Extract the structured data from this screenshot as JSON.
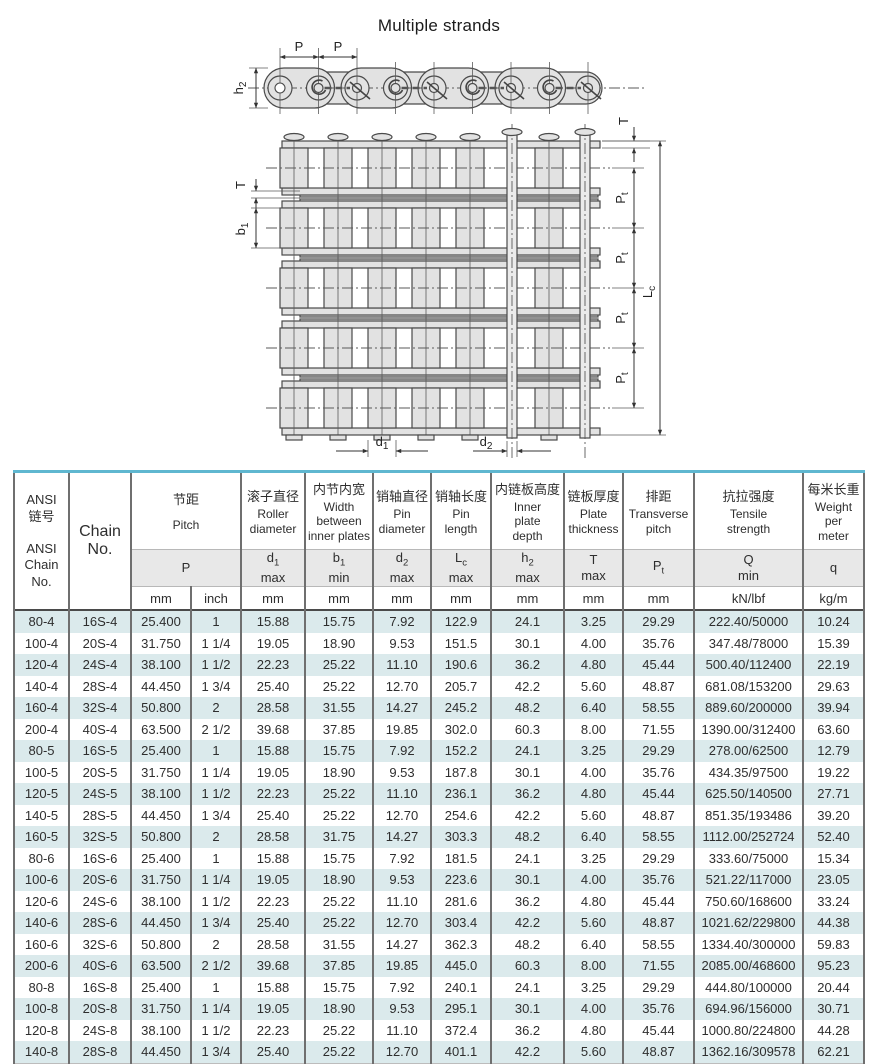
{
  "page": {
    "title": "Multiple strands"
  },
  "colors": {
    "accent_line": "#5fb7d0",
    "row_stripe": "#dbeaec",
    "header_band": "#e8e8e8"
  },
  "diagram": {
    "p_label": "P",
    "t_label": "T",
    "h_base": "h",
    "h_sub": "2",
    "b_base": "b",
    "b_sub": "1",
    "pt_base": "P",
    "pt_sub": "t",
    "lc_base": "L",
    "lc_sub": "c",
    "d1_base": "d",
    "d1_sub": "1",
    "d2_base": "d",
    "d2_sub": "2"
  },
  "table": {
    "ansi_col": "ANSI\n链号\n\nANSI\nChain\nNo.",
    "chain_col": "Chain No.",
    "groups": [
      {
        "zh": "节距",
        "en": "Pitch",
        "sym": {
          "b": "P"
        },
        "units": [
          "mm",
          "inch"
        ]
      },
      {
        "zh": "滚子直径",
        "en": "Roller\ndiameter",
        "sym": {
          "b": "d",
          "s": "1",
          "x": "max"
        },
        "units": [
          "mm"
        ]
      },
      {
        "zh": "内节内宽",
        "en": "Width\nbetween\ninner plates",
        "sym": {
          "b": "b",
          "s": "1",
          "x": "min"
        },
        "units": [
          "mm"
        ]
      },
      {
        "zh": "销轴直径",
        "en": "Pin\ndiameter",
        "sym": {
          "b": "d",
          "s": "2",
          "x": "max"
        },
        "units": [
          "mm"
        ]
      },
      {
        "zh": "销轴长度",
        "en": "Pin\nlength",
        "sym": {
          "b": "L",
          "s": "c",
          "x": "max"
        },
        "units": [
          "mm"
        ]
      },
      {
        "zh": "内链板高度",
        "en": "Inner\nplate\ndepth",
        "sym": {
          "b": "h",
          "s": "2",
          "x": "max"
        },
        "units": [
          "mm"
        ]
      },
      {
        "zh": "链板厚度",
        "en": "Plate\nthickness",
        "sym": {
          "b": "T",
          "x": "max"
        },
        "units": [
          "mm"
        ]
      },
      {
        "zh": "排距",
        "en": "Transverse\npitch",
        "sym": {
          "b": "P",
          "s": "t"
        },
        "units": [
          "mm"
        ]
      },
      {
        "zh": "抗拉强度",
        "en": "Tensile\nstrength",
        "sym": {
          "b": "Q",
          "x": "min"
        },
        "units": [
          "kN/lbf"
        ]
      },
      {
        "zh": "每米长重",
        "en": "Weight\nper\nmeter",
        "sym": {
          "b": "q"
        },
        "units": [
          "kg/m"
        ]
      }
    ],
    "rows": [
      [
        "80-4",
        "16S-4",
        "25.400",
        "1",
        "15.88",
        "15.75",
        "7.92",
        "122.9",
        "24.1",
        "3.25",
        "29.29",
        "222.40/50000",
        "10.24"
      ],
      [
        "100-4",
        "20S-4",
        "31.750",
        "1 1/4",
        "19.05",
        "18.90",
        "9.53",
        "151.5",
        "30.1",
        "4.00",
        "35.76",
        "347.48/78000",
        "15.39"
      ],
      [
        "120-4",
        "24S-4",
        "38.100",
        "1 1/2",
        "22.23",
        "25.22",
        "11.10",
        "190.6",
        "36.2",
        "4.80",
        "45.44",
        "500.40/112400",
        "22.19"
      ],
      [
        "140-4",
        "28S-4",
        "44.450",
        "1 3/4",
        "25.40",
        "25.22",
        "12.70",
        "205.7",
        "42.2",
        "5.60",
        "48.87",
        "681.08/153200",
        "29.63"
      ],
      [
        "160-4",
        "32S-4",
        "50.800",
        "2",
        "28.58",
        "31.55",
        "14.27",
        "245.2",
        "48.2",
        "6.40",
        "58.55",
        "889.60/200000",
        "39.94"
      ],
      [
        "200-4",
        "40S-4",
        "63.500",
        "2 1/2",
        "39.68",
        "37.85",
        "19.85",
        "302.0",
        "60.3",
        "8.00",
        "71.55",
        "1390.00/312400",
        "63.60"
      ],
      [
        "80-5",
        "16S-5",
        "25.400",
        "1",
        "15.88",
        "15.75",
        "7.92",
        "152.2",
        "24.1",
        "3.25",
        "29.29",
        "278.00/62500",
        "12.79"
      ],
      [
        "100-5",
        "20S-5",
        "31.750",
        "1 1/4",
        "19.05",
        "18.90",
        "9.53",
        "187.8",
        "30.1",
        "4.00",
        "35.76",
        "434.35/97500",
        "19.22"
      ],
      [
        "120-5",
        "24S-5",
        "38.100",
        "1 1/2",
        "22.23",
        "25.22",
        "11.10",
        "236.1",
        "36.2",
        "4.80",
        "45.44",
        "625.50/140500",
        "27.71"
      ],
      [
        "140-5",
        "28S-5",
        "44.450",
        "1 3/4",
        "25.40",
        "25.22",
        "12.70",
        "254.6",
        "42.2",
        "5.60",
        "48.87",
        "851.35/193486",
        "39.20"
      ],
      [
        "160-5",
        "32S-5",
        "50.800",
        "2",
        "28.58",
        "31.75",
        "14.27",
        "303.3",
        "48.2",
        "6.40",
        "58.55",
        "1112.00/252724",
        "52.40"
      ],
      [
        "80-6",
        "16S-6",
        "25.400",
        "1",
        "15.88",
        "15.75",
        "7.92",
        "181.5",
        "24.1",
        "3.25",
        "29.29",
        "333.60/75000",
        "15.34"
      ],
      [
        "100-6",
        "20S-6",
        "31.750",
        "1 1/4",
        "19.05",
        "18.90",
        "9.53",
        "223.6",
        "30.1",
        "4.00",
        "35.76",
        "521.22/117000",
        "23.05"
      ],
      [
        "120-6",
        "24S-6",
        "38.100",
        "1 1/2",
        "22.23",
        "25.22",
        "11.10",
        "281.6",
        "36.2",
        "4.80",
        "45.44",
        "750.60/168600",
        "33.24"
      ],
      [
        "140-6",
        "28S-6",
        "44.450",
        "1 3/4",
        "25.40",
        "25.22",
        "12.70",
        "303.4",
        "42.2",
        "5.60",
        "48.87",
        "1021.62/229800",
        "44.38"
      ],
      [
        "160-6",
        "32S-6",
        "50.800",
        "2",
        "28.58",
        "31.55",
        "14.27",
        "362.3",
        "48.2",
        "6.40",
        "58.55",
        "1334.40/300000",
        "59.83"
      ],
      [
        "200-6",
        "40S-6",
        "63.500",
        "2 1/2",
        "39.68",
        "37.85",
        "19.85",
        "445.0",
        "60.3",
        "8.00",
        "71.55",
        "2085.00/468600",
        "95.23"
      ],
      [
        "80-8",
        "16S-8",
        "25.400",
        "1",
        "15.88",
        "15.75",
        "7.92",
        "240.1",
        "24.1",
        "3.25",
        "29.29",
        "444.80/100000",
        "20.44"
      ],
      [
        "100-8",
        "20S-8",
        "31.750",
        "1 1/4",
        "19.05",
        "18.90",
        "9.53",
        "295.1",
        "30.1",
        "4.00",
        "35.76",
        "694.96/156000",
        "30.71"
      ],
      [
        "120-8",
        "24S-8",
        "38.100",
        "1 1/2",
        "22.23",
        "25.22",
        "11.10",
        "372.4",
        "36.2",
        "4.80",
        "45.44",
        "1000.80/224800",
        "44.28"
      ],
      [
        "140-8",
        "28S-8",
        "44.450",
        "1 3/4",
        "25.40",
        "25.22",
        "12.70",
        "401.1",
        "42.2",
        "5.60",
        "48.87",
        "1362.16/309578",
        "62.21"
      ]
    ]
  }
}
